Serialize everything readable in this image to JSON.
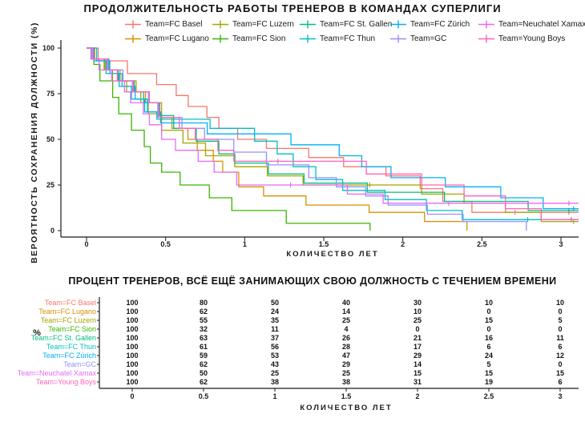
{
  "chart_data": [
    {
      "type": "line",
      "variant": "kaplan-meier-step-survival",
      "title": "ПРОДОЛЖИТЕЛЬНОСТЬ РАБОТЫ ТРЕНЕРОВ В КОМАНДАХ СУПЕРЛИГИ",
      "xlabel": "КОЛИЧЕСТВО ЛЕТ",
      "ylabel": "ВЕРОЯТНОСТЬ СОХРАНЕНИЯ ДОЛЖНОСТИ (%)",
      "x": [
        0,
        0.5,
        1,
        1.5,
        2,
        2.5,
        3
      ],
      "xticks": [
        "0",
        "0.5",
        "1",
        "1.5",
        "2",
        "2.5",
        "3"
      ],
      "yticks": [
        "100",
        "75",
        "50",
        "25",
        "0"
      ],
      "ylim": [
        0,
        100
      ],
      "xlim": [
        0,
        3.1
      ],
      "grid": false,
      "legend_position": "top",
      "legend_marker": "plus-on-line",
      "series": [
        {
          "name": "Team=FC Basel",
          "color": "#F8766D",
          "values": [
            100,
            80,
            50,
            40,
            30,
            10,
            10
          ]
        },
        {
          "name": "Team=FC Lugano",
          "color": "#D89000",
          "values": [
            100,
            62,
            24,
            14,
            10,
            0,
            0
          ]
        },
        {
          "name": "Team=FC Luzern",
          "color": "#A3A500",
          "values": [
            100,
            55,
            35,
            25,
            25,
            15,
            5
          ]
        },
        {
          "name": "Team=FC Sion",
          "color": "#39B600",
          "values": [
            100,
            32,
            11,
            4,
            0,
            0,
            0
          ]
        },
        {
          "name": "Team=FC St. Gallen",
          "color": "#00BF7D",
          "values": [
            100,
            63,
            37,
            26,
            21,
            16,
            11
          ]
        },
        {
          "name": "Team=FC Thun",
          "color": "#00BFC4",
          "values": [
            100,
            61,
            56,
            28,
            17,
            6,
            6
          ]
        },
        {
          "name": "Team=FC Zürich",
          "color": "#00B0F6",
          "values": [
            100,
            59,
            53,
            47,
            29,
            24,
            12
          ]
        },
        {
          "name": "Team=GC",
          "color": "#9590FF",
          "values": [
            100,
            62,
            43,
            29,
            14,
            5,
            0
          ]
        },
        {
          "name": "Team=Neuchatel Xamax",
          "color": "#E76BF3",
          "values": [
            100,
            50,
            25,
            25,
            15,
            15,
            15
          ]
        },
        {
          "name": "Team=Young Boys",
          "color": "#FF62BC",
          "values": [
            100,
            62,
            38,
            38,
            31,
            19,
            6
          ]
        }
      ]
    },
    {
      "type": "table",
      "title": "ПРОЦЕНТ ТРЕНЕРОВ, ВСЁ ЕЩЁ ЗАНИМАЮЩИХ СВОЮ ДОЛЖНОСТЬ С ТЕЧЕНИЕМ ВРЕМЕНИ",
      "ylabel": "%",
      "xlabel": "КОЛИЧЕСТВО ЛЕТ",
      "columns": [
        "0",
        "0.5",
        "1",
        "1.5",
        "2",
        "2.5",
        "3"
      ],
      "rows": [
        {
          "label": "Team=FC Basel",
          "color": "#F8766D",
          "values": [
            100,
            80,
            50,
            40,
            30,
            10,
            10
          ]
        },
        {
          "label": "Team=FC Lugano",
          "color": "#D89000",
          "values": [
            100,
            62,
            24,
            14,
            10,
            0,
            0
          ]
        },
        {
          "label": "Team=FC Luzern",
          "color": "#A3A500",
          "values": [
            100,
            55,
            35,
            25,
            25,
            15,
            5
          ]
        },
        {
          "label": "Team=FC Sion",
          "color": "#39B600",
          "values": [
            100,
            32,
            11,
            4,
            0,
            0,
            0
          ]
        },
        {
          "label": "Team=FC St. Gallen",
          "color": "#00BF7D",
          "values": [
            100,
            63,
            37,
            26,
            21,
            16,
            11
          ]
        },
        {
          "label": "Team=FC Thun",
          "color": "#00BFC4",
          "values": [
            100,
            61,
            56,
            28,
            17,
            6,
            6
          ]
        },
        {
          "label": "Team=FC Zürich",
          "color": "#00B0F6",
          "values": [
            100,
            59,
            53,
            47,
            29,
            24,
            12
          ]
        },
        {
          "label": "Team=GC",
          "color": "#9590FF",
          "values": [
            100,
            62,
            43,
            29,
            14,
            5,
            0
          ]
        },
        {
          "label": "Team=Neuchatel Xamax",
          "color": "#E76BF3",
          "values": [
            100,
            50,
            25,
            25,
            15,
            15,
            15
          ]
        },
        {
          "label": "Team=Young Boys",
          "color": "#FF62BC",
          "values": [
            100,
            62,
            38,
            38,
            31,
            19,
            6
          ]
        }
      ]
    }
  ]
}
